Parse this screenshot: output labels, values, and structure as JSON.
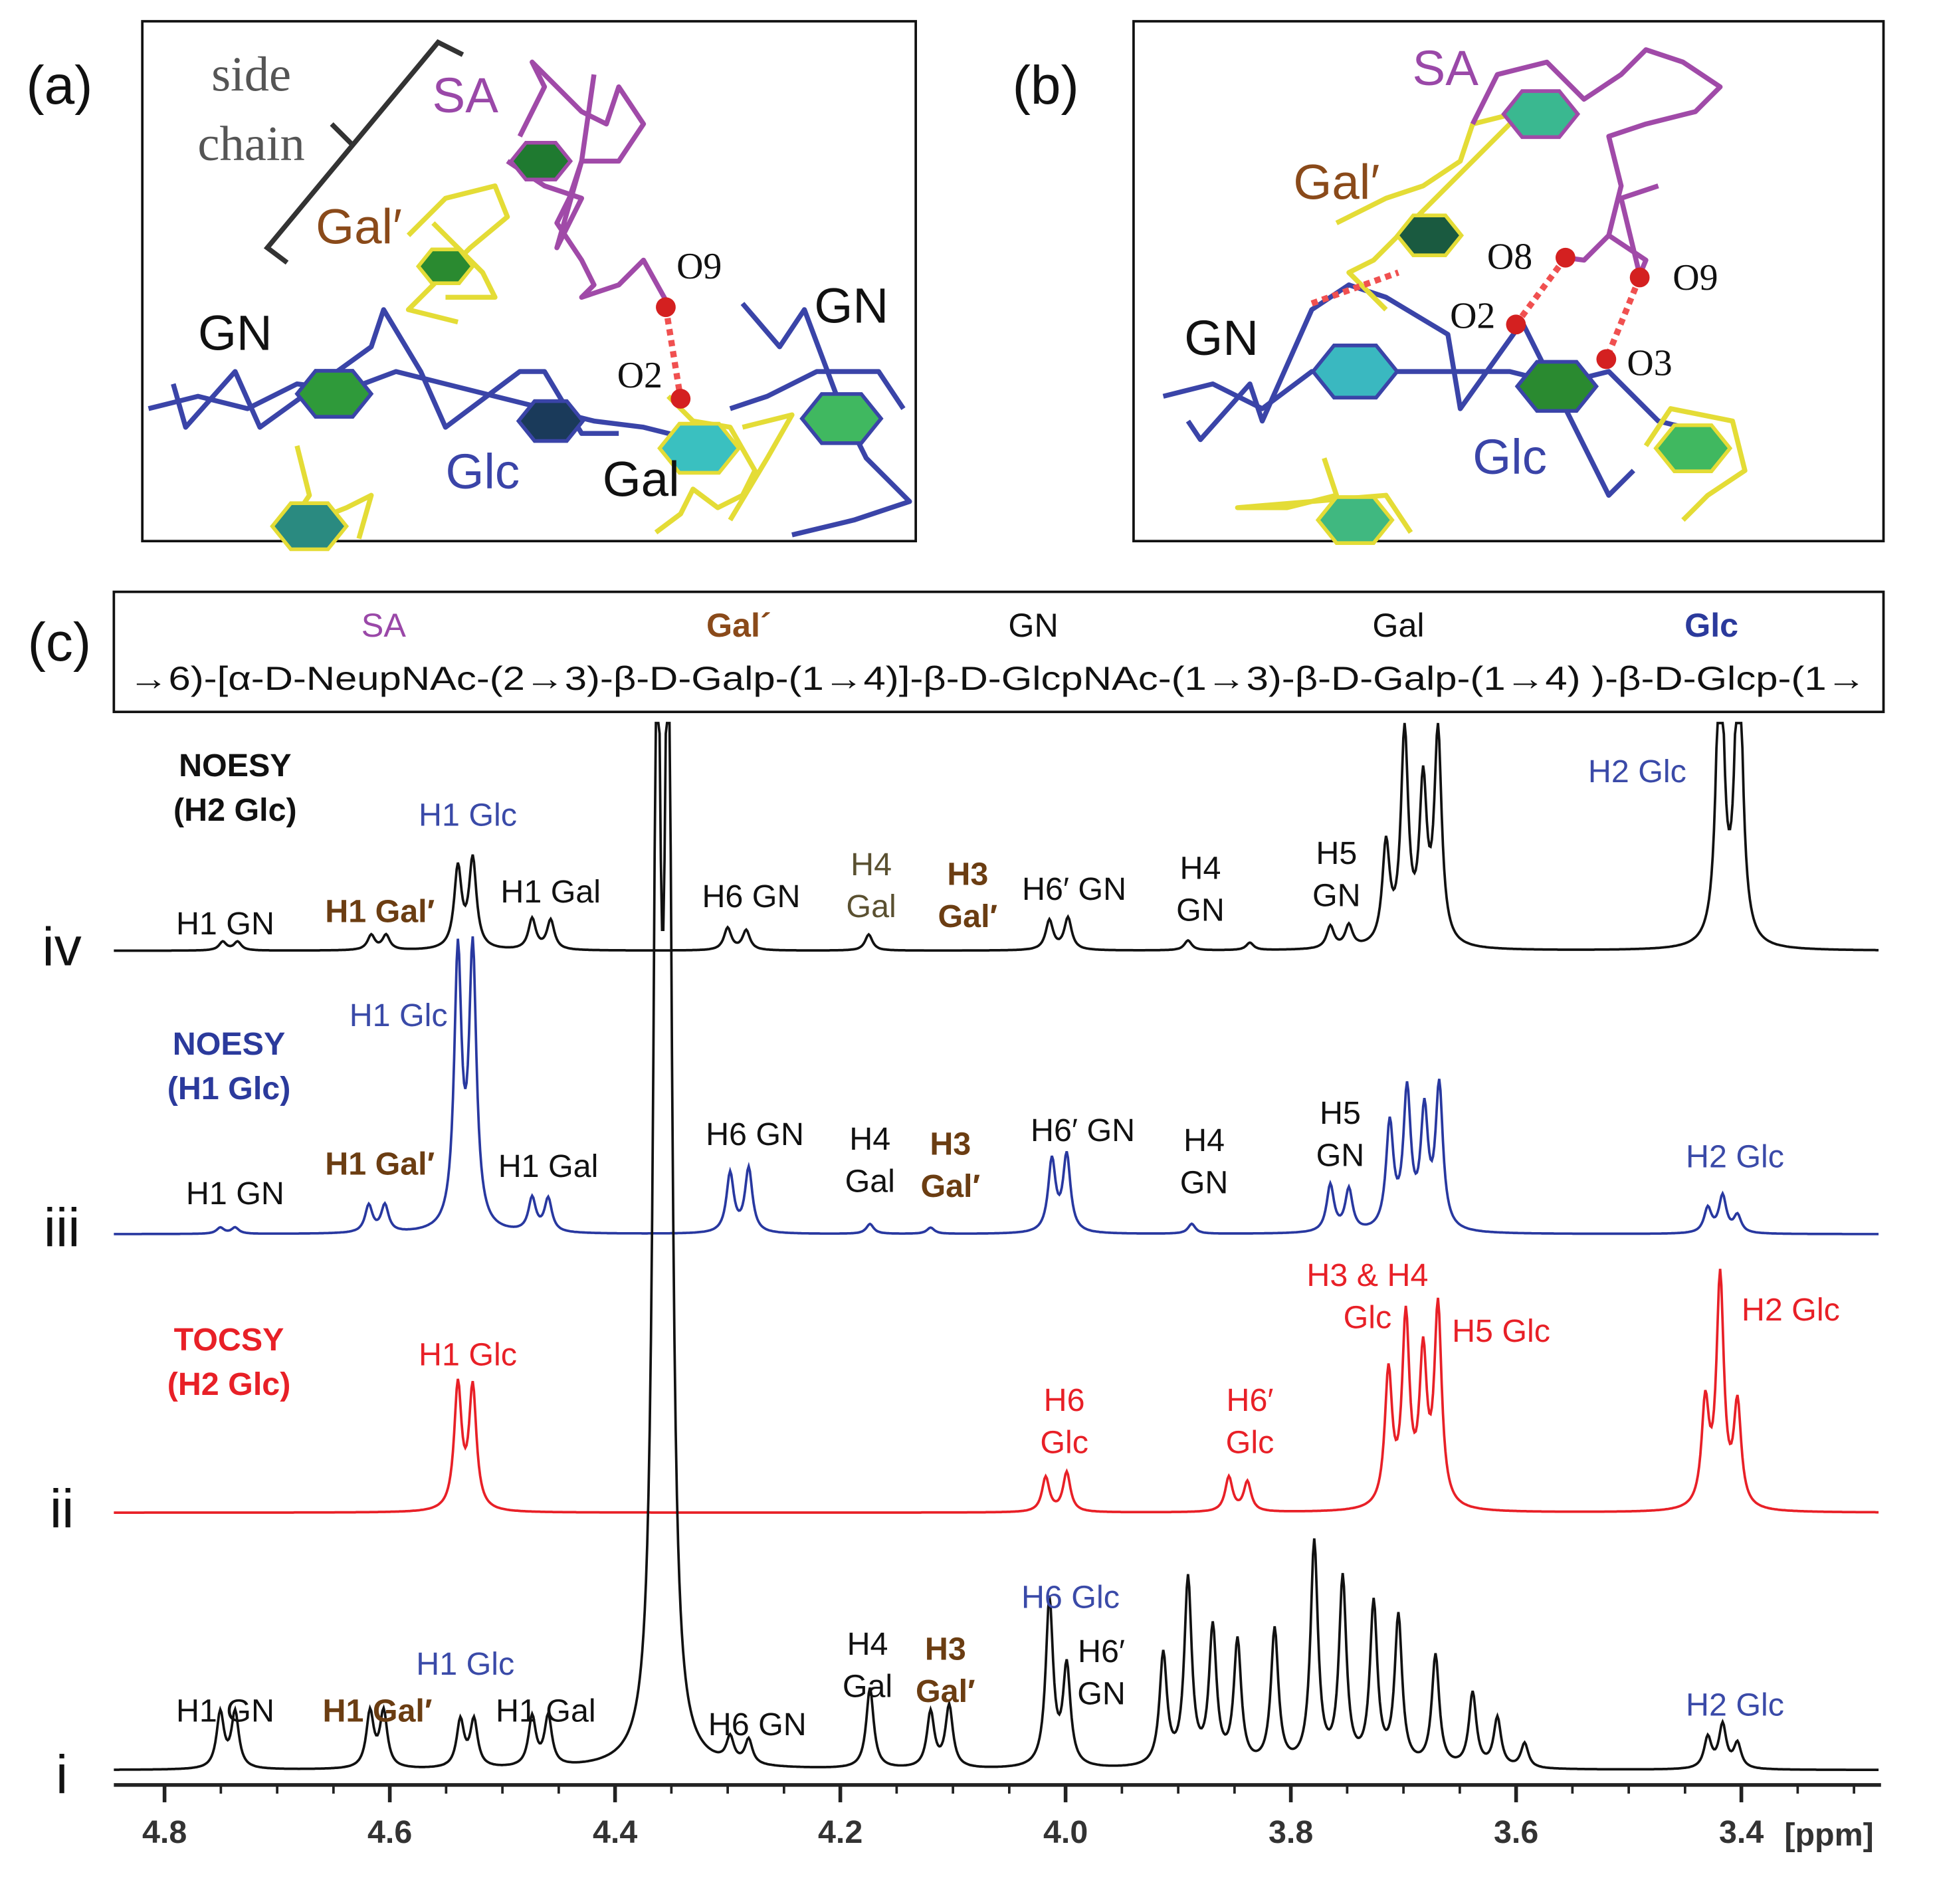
{
  "panel_a": {
    "letter": "(a)",
    "side_chain": [
      "side",
      "chain"
    ],
    "labels": {
      "sa": "SA",
      "gal_prime": "Gal′",
      "o9": "O9",
      "o2": "O2",
      "gn_left": "GN",
      "gn_right": "GN",
      "glc": "Glc",
      "gal": "Gal"
    }
  },
  "panel_b": {
    "letter": "(b)",
    "labels": {
      "sa": "SA",
      "gal_prime": "Gal′",
      "o8": "O8",
      "o9": "O9",
      "o2": "O2",
      "o3": "O3",
      "gn": "GN",
      "glc": "Glc"
    }
  },
  "panel_c": {
    "letter": "(c)",
    "sequence": {
      "residues": [
        "SA",
        "Gal´",
        "GN",
        "Gal",
        "Glc"
      ],
      "formula": "→6)-[α-D-NeupNAc-(2→3)-β-D-Galp-(1→4)]-β-D-GlcpNAc-(1→3)-β-D-Galp-(1→4) )-β-D-Glcp-(1→"
    },
    "spectra": [
      {
        "label": "iv",
        "experiment": [
          "NOESY",
          "(H2 Glc)"
        ],
        "peaks": [
          [
            "H1 GN"
          ],
          [
            "H1 Gal′"
          ],
          [
            "H1 Glc"
          ],
          [
            "H1 Gal"
          ],
          [
            "H6 GN"
          ],
          [
            "H4",
            "Gal"
          ],
          [
            "H3",
            "Gal′"
          ],
          [
            "H6′ GN"
          ],
          [
            "H4",
            "GN"
          ],
          [
            "H5",
            "GN"
          ],
          [
            "H2 Glc"
          ]
        ]
      },
      {
        "label": "iii",
        "experiment": [
          "NOESY",
          "(H1 Glc)"
        ],
        "peaks": [
          [
            "H1 GN"
          ],
          [
            "H1 Gal′"
          ],
          [
            "H1 Glc"
          ],
          [
            "H1 Gal"
          ],
          [
            "H6 GN"
          ],
          [
            "H4",
            "Gal"
          ],
          [
            "H3",
            "Gal′"
          ],
          [
            "H6′ GN"
          ],
          [
            "H4",
            "GN"
          ],
          [
            "H5",
            "GN"
          ],
          [
            "H2 Glc"
          ]
        ]
      },
      {
        "label": "ii",
        "experiment": [
          "TOCSY",
          "(H2 Glc)"
        ],
        "peaks": [
          [
            "H1 Glc"
          ],
          [
            "H6",
            "Glc"
          ],
          [
            "H6′",
            "Glc"
          ],
          [
            "H3 & H4",
            "Glc"
          ],
          [
            "H5 Glc"
          ],
          [
            "H2 Glc"
          ]
        ]
      },
      {
        "label": "i",
        "peaks": [
          [
            "H1 GN"
          ],
          [
            "H1 Gal′"
          ],
          [
            "H1 Glc"
          ],
          [
            "H1 Gal"
          ],
          [
            "H6 GN"
          ],
          [
            "H4",
            "Gal"
          ],
          [
            "H3",
            "Gal′"
          ],
          [
            "H6 Glc"
          ],
          [
            "H6′",
            "GN"
          ],
          [
            "H2 Glc"
          ]
        ]
      }
    ],
    "axis": {
      "xlim": [
        4.845,
        3.276
      ],
      "xticks": [
        4.8,
        4.6,
        4.4,
        4.2,
        {
          "value": 4,
          "label": "4.0"
        },
        3.8,
        3.6,
        3.4
      ],
      "unit": "[ppm]"
    }
  }
}
